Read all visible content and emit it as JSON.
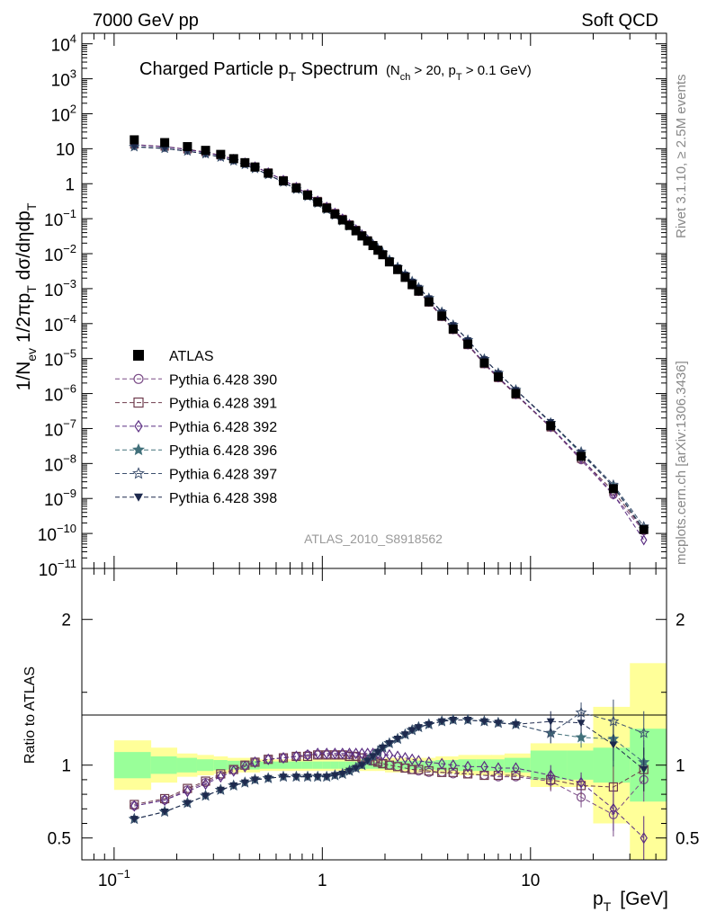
{
  "header": {
    "left": "7000 GeV pp",
    "right": "Soft QCD",
    "side_top": "Rivet 3.1.10, ≥ 2.5M events",
    "side_bottom": "mcplots.cern.ch [arXiv:1306.3436]"
  },
  "chart_data": [
    {
      "type": "scatter",
      "title_main": "Charged Particle p",
      "title_main_sub": "T",
      "title_main_rest": " Spectrum",
      "title_cuts_1": "(N",
      "title_cuts_sub1": "ch",
      "title_cuts_2": " > 20, p",
      "title_cuts_sub2": "T",
      "title_cuts_3": " > 0.1 GeV)",
      "ylabel": "1/N_ev 1/2πp_T dσ/dηdp_T",
      "ylabel_parts": [
        "1/N",
        "ev",
        " 1/2πp",
        "T",
        " dσ/dηdp",
        "T"
      ],
      "yscale": "log",
      "ylim": [
        1e-11,
        20000
      ],
      "ytick_mantissas": [
        "10",
        "10",
        "10",
        "10",
        "10",
        "10",
        "10",
        "10",
        "10",
        "10",
        "10",
        "10",
        "10",
        "10",
        "10",
        "10"
      ],
      "ytick_exps": [
        "4",
        "3",
        "2",
        "",
        "",
        "−1",
        "−2",
        "−3",
        "−4",
        "−5",
        "−6",
        "−7",
        "−8",
        "−9",
        "−10",
        "−11"
      ],
      "ytick_plain": [
        "",
        "",
        "",
        "10",
        "1",
        "",
        "",
        "",
        "",
        "",
        "",
        "",
        "",
        "",
        "",
        ""
      ],
      "ytick_values": [
        10000.0,
        1000.0,
        100.0,
        10.0,
        1,
        0.1,
        0.01,
        0.001,
        0.0001,
        1e-05,
        1e-06,
        1e-07,
        1e-08,
        1e-09,
        1e-10,
        1e-11
      ],
      "watermark": "ATLAS_2010_S8918562",
      "series": [
        {
          "name": "ATLAS",
          "marker": "square-filled",
          "color": "#000000",
          "x": [
            0.125,
            0.175,
            0.225,
            0.275,
            0.325,
            0.375,
            0.425,
            0.475,
            0.55,
            0.65,
            0.75,
            0.85,
            0.95,
            1.05,
            1.15,
            1.25,
            1.35,
            1.45,
            1.55,
            1.65,
            1.75,
            1.85,
            1.95,
            2.1,
            2.3,
            2.5,
            2.7,
            2.9,
            3.25,
            3.75,
            4.25,
            5.0,
            6.0,
            7.0,
            8.5,
            12.5,
            17.5,
            25.0,
            35.0
          ],
          "y": [
            18,
            15,
            11.5,
            9,
            6.9,
            5.2,
            4.0,
            3.0,
            2.0,
            1.2,
            0.75,
            0.47,
            0.3,
            0.2,
            0.135,
            0.092,
            0.064,
            0.045,
            0.032,
            0.023,
            0.017,
            0.0125,
            0.0093,
            0.0058,
            0.0035,
            0.0021,
            0.0013,
            0.00085,
            0.00042,
            0.000165,
            7e-05,
            2.6e-05,
            7.5e-06,
            3e-06,
            1e-06,
            1.2e-07,
            1.6e-08,
            1.9e-09,
            1.3e-10
          ]
        },
        {
          "name": "Pythia 6.428 390",
          "marker": "circle-open",
          "color": "#7a4b86"
        },
        {
          "name": "Pythia 6.428 391",
          "marker": "square-open",
          "color": "#6e3b4c"
        },
        {
          "name": "Pythia 6.428 392",
          "marker": "diamond-open",
          "color": "#5a2d82"
        },
        {
          "name": "Pythia 6.428 396",
          "marker": "star-filled",
          "color": "#41707a"
        },
        {
          "name": "Pythia 6.428 397",
          "marker": "star-open",
          "color": "#3c4f6e"
        },
        {
          "name": "Pythia 6.428 398",
          "marker": "triangle-down-filled",
          "color": "#1e2a4e"
        }
      ]
    },
    {
      "type": "line",
      "ylabel": "Ratio to ATLAS",
      "xlabel_main": "p",
      "xlabel_sub": "T",
      "xlabel_unit": "[GeV]",
      "xscale": "log",
      "xlim": [
        0.07,
        45
      ],
      "ylim": [
        0.35,
        2.35
      ],
      "ytick_labels": [
        "2",
        "1",
        "0.5"
      ],
      "ytick_values": [
        2,
        1,
        0.5
      ],
      "xtick_mantissas": [
        "10",
        "",
        "10"
      ],
      "xtick_exps": [
        "−1",
        "",
        ""
      ],
      "xtick_plain": [
        "",
        "1",
        ""
      ],
      "xtick_values": [
        0.1,
        1,
        10
      ],
      "bands": {
        "x_edges": [
          0.1,
          0.15,
          0.2,
          0.25,
          0.3,
          0.35,
          0.4,
          0.45,
          0.5,
          0.6,
          0.7,
          0.8,
          0.9,
          1.0,
          1.1,
          1.2,
          1.3,
          1.4,
          1.5,
          1.6,
          1.7,
          1.8,
          1.9,
          2.0,
          2.2,
          2.4,
          2.6,
          2.8,
          3.0,
          3.5,
          4.0,
          4.5,
          5.5,
          6.5,
          7.5,
          10,
          15,
          20,
          30,
          45
        ],
        "green_half": [
          0.09,
          0.06,
          0.05,
          0.04,
          0.035,
          0.03,
          0.03,
          0.03,
          0.025,
          0.025,
          0.025,
          0.025,
          0.025,
          0.025,
          0.025,
          0.025,
          0.025,
          0.025,
          0.025,
          0.025,
          0.025,
          0.025,
          0.025,
          0.03,
          0.03,
          0.03,
          0.03,
          0.03,
          0.03,
          0.035,
          0.035,
          0.04,
          0.04,
          0.04,
          0.05,
          0.1,
          0.1,
          0.12,
          0.25
        ],
        "yellow_half": [
          0.17,
          0.12,
          0.08,
          0.07,
          0.06,
          0.05,
          0.05,
          0.05,
          0.04,
          0.04,
          0.04,
          0.04,
          0.04,
          0.04,
          0.04,
          0.04,
          0.04,
          0.04,
          0.04,
          0.04,
          0.04,
          0.04,
          0.04,
          0.05,
          0.05,
          0.05,
          0.05,
          0.05,
          0.05,
          0.06,
          0.06,
          0.07,
          0.07,
          0.07,
          0.08,
          0.15,
          0.15,
          0.4,
          0.7
        ],
        "green_color": "#99ff99",
        "yellow_color": "#ffff99"
      },
      "series": [
        {
          "name": "Pythia 6.428 390",
          "marker": "circle-open",
          "color": "#7a4b86",
          "x": [
            0.125,
            0.175,
            0.225,
            0.275,
            0.325,
            0.375,
            0.425,
            0.475,
            0.55,
            0.65,
            0.75,
            0.85,
            0.95,
            1.05,
            1.15,
            1.25,
            1.35,
            1.45,
            1.55,
            1.65,
            1.75,
            1.85,
            1.95,
            2.1,
            2.3,
            2.5,
            2.7,
            2.9,
            3.25,
            3.75,
            4.25,
            5.0,
            6.0,
            7.0,
            8.5,
            12.5,
            17.5,
            25.0,
            35.0
          ],
          "y": [
            0.72,
            0.76,
            0.83,
            0.88,
            0.93,
            0.97,
            1.0,
            1.02,
            1.04,
            1.05,
            1.06,
            1.07,
            1.07,
            1.07,
            1.07,
            1.07,
            1.07,
            1.06,
            1.05,
            1.04,
            1.03,
            1.02,
            1.01,
            1.0,
            0.99,
            0.98,
            0.97,
            0.96,
            0.95,
            0.95,
            0.94,
            0.94,
            0.93,
            0.92,
            0.92,
            0.89,
            0.78,
            0.66,
            0.9
          ]
        },
        {
          "name": "Pythia 6.428 391",
          "marker": "square-open",
          "color": "#6e3b4c",
          "x": [
            0.125,
            0.175,
            0.225,
            0.275,
            0.325,
            0.375,
            0.425,
            0.475,
            0.55,
            0.65,
            0.75,
            0.85,
            0.95,
            1.05,
            1.15,
            1.25,
            1.35,
            1.45,
            1.55,
            1.65,
            1.75,
            1.85,
            1.95,
            2.1,
            2.3,
            2.5,
            2.7,
            2.9,
            3.25,
            3.75,
            4.25,
            5.0,
            6.0,
            7.0,
            8.5,
            12.5,
            17.5,
            25.0,
            35.0
          ],
          "y": [
            0.73,
            0.77,
            0.84,
            0.89,
            0.94,
            0.97,
            1.0,
            1.02,
            1.04,
            1.05,
            1.06,
            1.06,
            1.07,
            1.07,
            1.07,
            1.07,
            1.06,
            1.06,
            1.05,
            1.04,
            1.03,
            1.02,
            1.01,
            1.0,
            0.99,
            0.98,
            0.97,
            0.97,
            0.96,
            0.95,
            0.95,
            0.94,
            0.93,
            0.93,
            0.93,
            0.9,
            0.86,
            0.85,
            0.97
          ]
        },
        {
          "name": "Pythia 6.428 392",
          "marker": "diamond-open",
          "color": "#5a2d82",
          "x": [
            0.125,
            0.175,
            0.225,
            0.275,
            0.325,
            0.375,
            0.425,
            0.475,
            0.55,
            0.65,
            0.75,
            0.85,
            0.95,
            1.05,
            1.15,
            1.25,
            1.35,
            1.45,
            1.55,
            1.65,
            1.75,
            1.85,
            1.95,
            2.1,
            2.3,
            2.5,
            2.7,
            2.9,
            3.25,
            3.75,
            4.25,
            5.0,
            6.0,
            7.0,
            8.5,
            12.5,
            17.5,
            25.0,
            35.0
          ],
          "y": [
            0.72,
            0.76,
            0.82,
            0.87,
            0.92,
            0.96,
            0.99,
            1.02,
            1.04,
            1.05,
            1.06,
            1.07,
            1.08,
            1.08,
            1.08,
            1.08,
            1.08,
            1.08,
            1.08,
            1.08,
            1.08,
            1.08,
            1.07,
            1.07,
            1.06,
            1.05,
            1.04,
            1.03,
            1.02,
            1.01,
            1.0,
            0.99,
            0.99,
            0.98,
            0.98,
            0.93,
            0.88,
            0.7,
            0.5
          ]
        },
        {
          "name": "Pythia 6.428 396",
          "marker": "star-filled",
          "color": "#41707a",
          "x": [
            0.125,
            0.175,
            0.225,
            0.275,
            0.325,
            0.375,
            0.425,
            0.475,
            0.55,
            0.65,
            0.75,
            0.85,
            0.95,
            1.05,
            1.15,
            1.25,
            1.35,
            1.45,
            1.55,
            1.65,
            1.75,
            1.85,
            1.95,
            2.1,
            2.3,
            2.5,
            2.7,
            2.9,
            3.25,
            3.75,
            4.25,
            5.0,
            6.0,
            7.0,
            8.5,
            12.5,
            17.5,
            25.0,
            35.0
          ],
          "y": [
            0.63,
            0.68,
            0.74,
            0.79,
            0.83,
            0.86,
            0.88,
            0.9,
            0.91,
            0.92,
            0.92,
            0.92,
            0.92,
            0.92,
            0.93,
            0.94,
            0.96,
            0.98,
            1.0,
            1.03,
            1.06,
            1.09,
            1.12,
            1.15,
            1.18,
            1.21,
            1.24,
            1.26,
            1.28,
            1.3,
            1.31,
            1.31,
            1.3,
            1.29,
            1.28,
            1.22,
            1.19,
            1.18,
            1.02
          ]
        },
        {
          "name": "Pythia 6.428 397",
          "marker": "star-open",
          "color": "#3c4f6e",
          "x": [
            0.125,
            0.175,
            0.225,
            0.275,
            0.325,
            0.375,
            0.425,
            0.475,
            0.55,
            0.65,
            0.75,
            0.85,
            0.95,
            1.05,
            1.15,
            1.25,
            1.35,
            1.45,
            1.55,
            1.65,
            1.75,
            1.85,
            1.95,
            2.1,
            2.3,
            2.5,
            2.7,
            2.9,
            3.25,
            3.75,
            4.25,
            5.0,
            6.0,
            7.0,
            8.5,
            12.5,
            17.5,
            25.0,
            35.0
          ],
          "y": [
            0.63,
            0.68,
            0.74,
            0.79,
            0.83,
            0.86,
            0.88,
            0.9,
            0.91,
            0.92,
            0.92,
            0.92,
            0.92,
            0.92,
            0.93,
            0.94,
            0.96,
            0.98,
            1.0,
            1.03,
            1.06,
            1.09,
            1.12,
            1.15,
            1.18,
            1.21,
            1.24,
            1.26,
            1.28,
            1.3,
            1.31,
            1.31,
            1.3,
            1.29,
            1.28,
            1.22,
            1.36,
            1.3,
            1.22
          ]
        },
        {
          "name": "Pythia 6.428 398",
          "marker": "triangle-down-filled",
          "color": "#1e2a4e",
          "x": [
            0.125,
            0.175,
            0.225,
            0.275,
            0.325,
            0.375,
            0.425,
            0.475,
            0.55,
            0.65,
            0.75,
            0.85,
            0.95,
            1.05,
            1.15,
            1.25,
            1.35,
            1.45,
            1.55,
            1.65,
            1.75,
            1.85,
            1.95,
            2.1,
            2.3,
            2.5,
            2.7,
            2.9,
            3.25,
            3.75,
            4.25,
            5.0,
            6.0,
            7.0,
            8.5,
            12.5,
            17.5,
            25.0,
            35.0
          ],
          "y": [
            0.63,
            0.68,
            0.74,
            0.79,
            0.83,
            0.86,
            0.88,
            0.9,
            0.91,
            0.92,
            0.92,
            0.92,
            0.92,
            0.92,
            0.93,
            0.94,
            0.96,
            0.98,
            1.0,
            1.03,
            1.06,
            1.09,
            1.12,
            1.15,
            1.18,
            1.21,
            1.24,
            1.26,
            1.28,
            1.3,
            1.31,
            1.31,
            1.3,
            1.29,
            1.28,
            1.3,
            1.29,
            1.14,
            0.97
          ]
        }
      ]
    }
  ]
}
